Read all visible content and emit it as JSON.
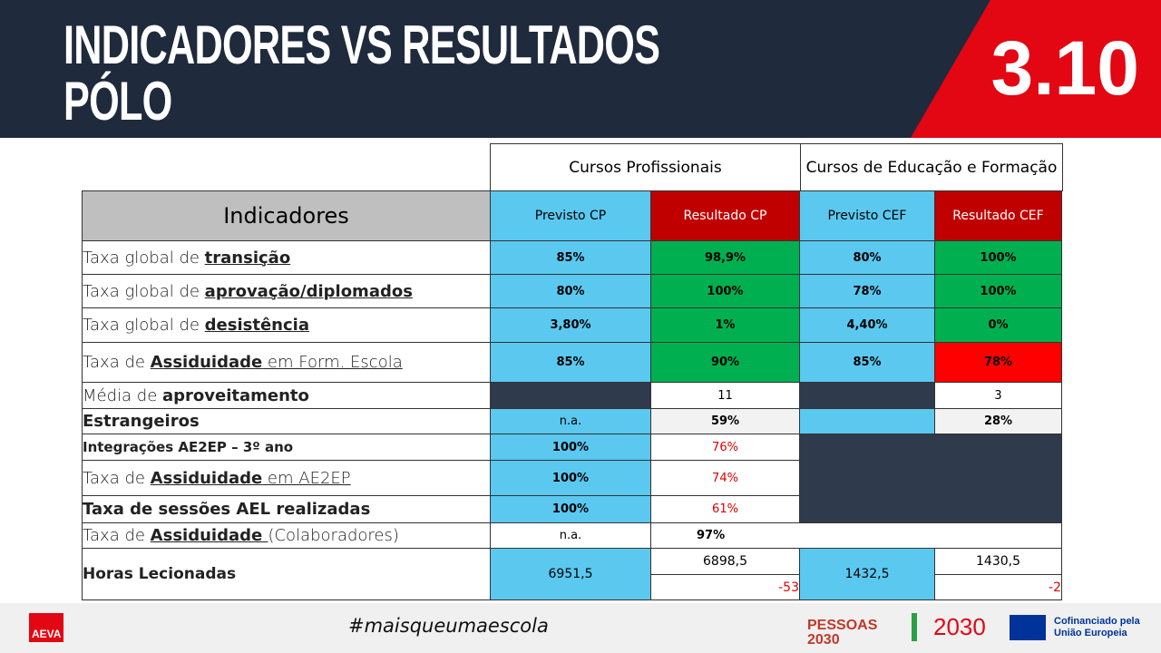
{
  "header": {
    "title_line1": "INDICADORES VS RESULTADOS",
    "title_line2": "PÓLO",
    "section": "3.10"
  },
  "table": {
    "group_headers": [
      "Cursos Profissionais",
      "Cursos de Educação e Formação"
    ],
    "column_header": "Indicadores",
    "columns": [
      "Previsto CP",
      "Resultado CP",
      "Previsto CEF",
      "Resultado CEF"
    ],
    "rows": [
      {
        "label": {
          "pre": "Taxa global de ",
          "key": "transição"
        },
        "cells": [
          "85%",
          "98,9%",
          "80%",
          "100%"
        ]
      },
      {
        "label": {
          "pre": "Taxa global de ",
          "key": "aprovação/diplomados"
        },
        "cells": [
          "80%",
          "100%",
          "78%",
          "100%"
        ]
      },
      {
        "label": {
          "pre": "Taxa global de ",
          "key": "desistência"
        },
        "cells": [
          "3,80%",
          "1%",
          "4,40%",
          "0%"
        ]
      },
      {
        "label": {
          "pre": "Taxa de ",
          "key": "Assiduidade",
          "post": " em Form. Escola"
        },
        "cells": [
          "85%",
          "90%",
          "85%",
          "78%"
        ]
      },
      {
        "label": {
          "pre": "Média de ",
          "key": "aproveitamento"
        },
        "cells": [
          "11",
          "3"
        ]
      },
      {
        "label": {
          "key": "Estrangeiros"
        },
        "cells": [
          "n.a.",
          "59%",
          "28%"
        ]
      },
      {
        "label": {
          "key": "Integrações AE2EP – 3º ano"
        },
        "cells": [
          "100%",
          "76%"
        ]
      },
      {
        "label": {
          "pre": "Taxa de ",
          "key": "Assiduidade",
          "post": " em AE2EP"
        },
        "cells": [
          "100%",
          "74%"
        ]
      },
      {
        "label": {
          "key": "Taxa de sessões AEL realizadas"
        },
        "cells": [
          "100%",
          "61%"
        ]
      },
      {
        "label": {
          "pre": "Taxa de ",
          "key": "Assiduidade ",
          "post": "(Colaboradores)"
        },
        "cells": [
          "n.a.",
          "97%"
        ]
      },
      {
        "label": {
          "key": "Horas Lecionadas"
        },
        "cells": [
          "6951,5",
          "6898,5",
          "-53",
          "1432,5",
          "1430,5",
          "-2"
        ]
      }
    ]
  },
  "footer": {
    "hashtag": "#maisqueumaescola",
    "school_logo": "AEVA",
    "pessoas_logo": "PESSOAS 2030",
    "portugal_logo": "2030",
    "eu_logo": "Cofinanciado pela União Europeia"
  }
}
